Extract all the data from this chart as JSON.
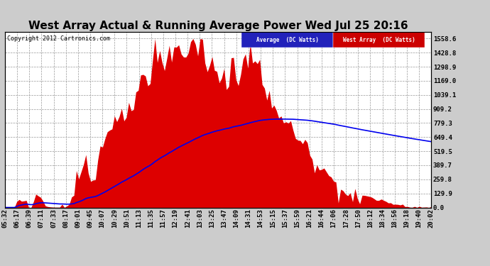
{
  "title": "West Array Actual & Running Average Power Wed Jul 25 20:16",
  "copyright": "Copyright 2012 Cartronics.com",
  "legend_labels": [
    "Average  (DC Watts)",
    "West Array  (DC Watts)"
  ],
  "ylabel_right_ticks": [
    0.0,
    129.9,
    259.8,
    389.7,
    519.5,
    649.4,
    779.3,
    909.2,
    1039.1,
    1169.0,
    1298.9,
    1428.8,
    1558.6
  ],
  "ymax": 1620,
  "background_color": "#cccccc",
  "plot_bg_color": "#ffffff",
  "grid_color": "#999999",
  "bar_color": "#dd0000",
  "line_color": "#0000ee",
  "title_fontsize": 11,
  "tick_fontsize": 6.5,
  "x_tick_labels": [
    "05:32",
    "06:17",
    "06:39",
    "07:11",
    "07:33",
    "08:17",
    "09:01",
    "09:45",
    "10:07",
    "10:29",
    "10:51",
    "11:13",
    "11:35",
    "11:57",
    "12:19",
    "12:41",
    "13:03",
    "13:25",
    "13:47",
    "14:09",
    "14:31",
    "14:53",
    "15:15",
    "15:37",
    "15:59",
    "16:21",
    "16:44",
    "17:06",
    "17:28",
    "17:50",
    "18:12",
    "18:34",
    "18:56",
    "19:18",
    "19:40",
    "20:02"
  ]
}
